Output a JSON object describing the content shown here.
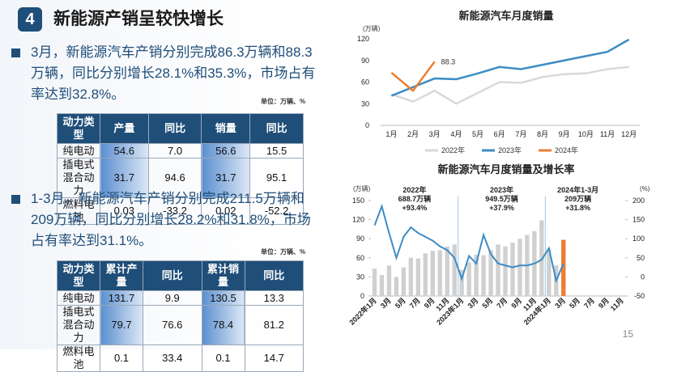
{
  "header": {
    "number": "4",
    "title": "新能源产销呈较快增长"
  },
  "page_number": "15",
  "section1": {
    "text": "3月，新能源汽车产销分别完成86.3万辆和88.3万辆，同比分别增长28.1%和35.3%，市场占有率达到32.8%。",
    "unit": "单位：万辆、%",
    "table": {
      "header": [
        "动力类型",
        "产量",
        "同比",
        "销量",
        "同比"
      ],
      "rows": [
        [
          "纯电动",
          "54.6",
          "7.0",
          "56.6",
          "15.5"
        ],
        [
          "插电式混合动力",
          "31.7",
          "94.6",
          "31.7",
          "95.1"
        ],
        [
          "燃料电池",
          "0.03",
          "-33.2",
          "0.02",
          "-52.2"
        ]
      ]
    }
  },
  "section2": {
    "text": "1-3月，新能源汽车产销分别完成211.5万辆和209万辆，同比分别增长28.2%和31.8%，市场占有率达到31.1%。",
    "unit": "单位：万辆、%",
    "table": {
      "header": [
        "动力类型",
        "累计产量",
        "同比",
        "累计销量",
        "同比"
      ],
      "rows": [
        [
          "纯电动",
          "131.7",
          "9.9",
          "130.5",
          "13.3"
        ],
        [
          "插电式混合动力",
          "79.7",
          "76.6",
          "78.4",
          "81.2"
        ],
        [
          "燃料电池",
          "0.1",
          "33.4",
          "0.1",
          "14.7"
        ]
      ]
    }
  },
  "chart_data": [
    {
      "type": "line",
      "title": "新能源汽车月度销量",
      "y_label": "(万辆)",
      "categories": [
        "1月",
        "2月",
        "3月",
        "4月",
        "5月",
        "6月",
        "7月",
        "8月",
        "9月",
        "10月",
        "11月",
        "12月"
      ],
      "ylim": [
        0,
        120
      ],
      "yticks": [
        0,
        30,
        60,
        90,
        120
      ],
      "grid": false,
      "legend": "bottom",
      "series": [
        {
          "name": "2022年",
          "color": "#d9d9d9",
          "values": [
            43,
            33,
            48,
            30,
            45,
            60,
            59,
            67,
            71,
            72,
            78,
            81
          ]
        },
        {
          "name": "2023年",
          "color": "#3d8cc6",
          "values": [
            41,
            53,
            65,
            64,
            72,
            81,
            78,
            84,
            90,
            96,
            102,
            119
          ]
        },
        {
          "name": "2024年",
          "color": "#ed7d31",
          "values": [
            73,
            48,
            88.3,
            null,
            null,
            null,
            null,
            null,
            null,
            null,
            null,
            null
          ],
          "label_last": true
        }
      ]
    },
    {
      "type": "bar_line",
      "title": "新能源汽车月度销量及增长率",
      "y_label": "(万辆)",
      "y2_label": "(%)",
      "categories": [
        "2022年1月",
        null,
        "3月",
        null,
        "5月",
        null,
        "7月",
        null,
        "9月",
        null,
        "11月",
        null,
        "2023年1月",
        null,
        "3月",
        null,
        "5月",
        null,
        "7月",
        null,
        "9月",
        null,
        "11月",
        null,
        "2024年1月",
        null,
        "3月",
        null,
        "5月",
        null,
        "7月",
        null,
        "9月",
        null,
        "11月"
      ],
      "ylim": [
        0,
        150
      ],
      "yticks": [
        0,
        30,
        60,
        90,
        120,
        150
      ],
      "y2lim": [
        -50,
        200
      ],
      "y2ticks": [
        -50,
        0,
        50,
        100,
        150,
        200
      ],
      "series": [
        {
          "type": "bar",
          "color": "#d0d0d0",
          "values": [
            43,
            33,
            48,
            30,
            45,
            60,
            59,
            67,
            71,
            72,
            78,
            81,
            41,
            53,
            65,
            64,
            72,
            81,
            78,
            84,
            90,
            96,
            102,
            119,
            73,
            48,
            null,
            null,
            null,
            null,
            null,
            null,
            null,
            null,
            null
          ]
        },
        {
          "type": "bar",
          "color": "#ed7d31",
          "values": [
            null,
            null,
            null,
            null,
            null,
            null,
            null,
            null,
            null,
            null,
            null,
            null,
            null,
            null,
            null,
            null,
            null,
            null,
            null,
            null,
            null,
            null,
            null,
            null,
            null,
            null,
            88.3,
            null,
            null,
            null,
            null,
            null,
            null,
            null,
            null
          ]
        },
        {
          "type": "line",
          "axis": "y2",
          "color": "#3d8cc6",
          "values": [
            135,
            185,
            115,
            50,
            105,
            130,
            115,
            105,
            95,
            80,
            70,
            50,
            -5,
            55,
            35,
            110,
            60,
            35,
            30,
            25,
            30,
            30,
            35,
            45,
            75,
            -10,
            35,
            null,
            null,
            null,
            null,
            null,
            null,
            null,
            null
          ]
        }
      ],
      "annotations": [
        {
          "lines": [
            "2022年",
            "688.7万辆",
            "+93.4%"
          ],
          "category": 5.5
        },
        {
          "lines": [
            "2023年",
            "949.5万辆",
            "+37.9%"
          ],
          "category": 17.5
        },
        {
          "lines": [
            "2024年1-3月",
            "209万辆",
            "+31.8%"
          ],
          "category": 28
        }
      ]
    }
  ]
}
